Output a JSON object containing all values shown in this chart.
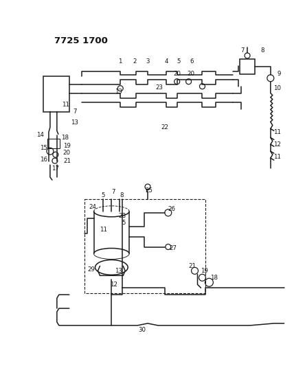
{
  "title": "7725 1700",
  "bg_color": "#ffffff",
  "line_color": "#1a1a1a",
  "text_color": "#111111",
  "fig_width": 4.28,
  "fig_height": 5.33,
  "dpi": 100,
  "lw": 1.1
}
